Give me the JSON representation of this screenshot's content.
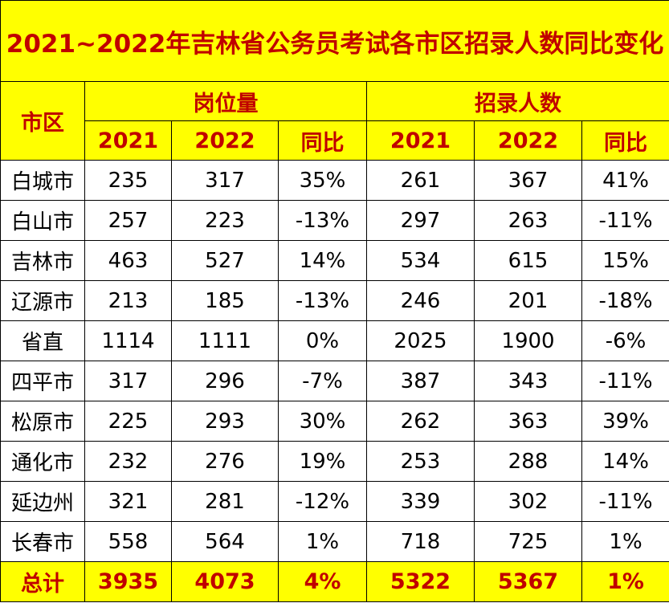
{
  "title": "2021~2022年吉林省公务员考试各市区招录人数同比变化",
  "headers": {
    "region": "市区",
    "positions": "岗位量",
    "recruits": "招录人数",
    "sub": [
      "2021",
      "2022",
      "同比",
      "2021",
      "2022",
      "同比"
    ]
  },
  "rows": [
    {
      "region": "白城市",
      "cells": [
        "235",
        "317",
        "35%",
        "261",
        "367",
        "41%"
      ]
    },
    {
      "region": "白山市",
      "cells": [
        "257",
        "223",
        "-13%",
        "297",
        "263",
        "-11%"
      ]
    },
    {
      "region": "吉林市",
      "cells": [
        "463",
        "527",
        "14%",
        "534",
        "615",
        "15%"
      ]
    },
    {
      "region": "辽源市",
      "cells": [
        "213",
        "185",
        "-13%",
        "246",
        "201",
        "-18%"
      ]
    },
    {
      "region": "省直",
      "cells": [
        "1114",
        "1111",
        "0%",
        "2025",
        "1900",
        "-6%"
      ]
    },
    {
      "region": "四平市",
      "cells": [
        "317",
        "296",
        "-7%",
        "387",
        "343",
        "-11%"
      ]
    },
    {
      "region": "松原市",
      "cells": [
        "225",
        "293",
        "30%",
        "262",
        "363",
        "39%"
      ]
    },
    {
      "region": "通化市",
      "cells": [
        "232",
        "276",
        "19%",
        "253",
        "288",
        "14%"
      ]
    },
    {
      "region": "延边州",
      "cells": [
        "321",
        "281",
        "-12%",
        "339",
        "302",
        "-11%"
      ]
    },
    {
      "region": "长春市",
      "cells": [
        "558",
        "564",
        "1%",
        "718",
        "725",
        "1%"
      ]
    }
  ],
  "total": {
    "label": "总计",
    "cells": [
      "3935",
      "4073",
      "4%",
      "5322",
      "5367",
      "1%"
    ]
  },
  "colors": {
    "header_bg": "#ffff00",
    "header_text": "#c00000"
  }
}
